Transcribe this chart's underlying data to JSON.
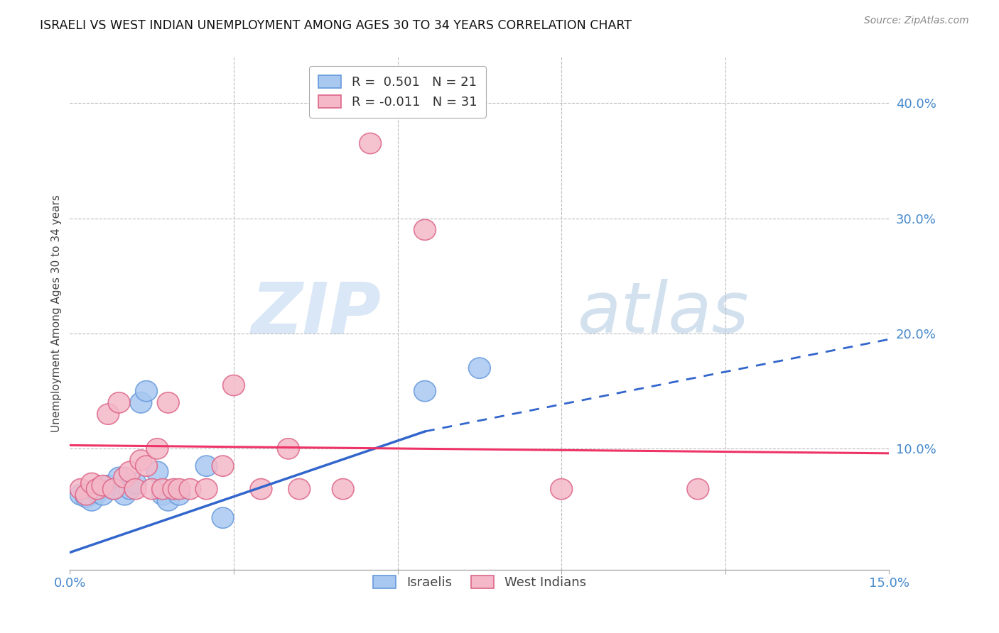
{
  "title": "ISRAELI VS WEST INDIAN UNEMPLOYMENT AMONG AGES 30 TO 34 YEARS CORRELATION CHART",
  "source": "Source: ZipAtlas.com",
  "ylabel": "Unemployment Among Ages 30 to 34 years",
  "xlim": [
    0.0,
    0.15
  ],
  "ylim": [
    -0.005,
    0.44
  ],
  "israelis_color": "#A8C8F0",
  "israelis_edge_color": "#6699DD",
  "west_indians_color": "#F4B8C8",
  "west_indians_edge_color": "#DD6688",
  "trend_israelis_color": "#3366CC",
  "trend_west_indians_color": "#EE3366",
  "watermark_zip": "ZIP",
  "watermark_atlas": "atlas",
  "israelis_x": [
    0.002,
    0.003,
    0.004,
    0.005,
    0.006,
    0.007,
    0.008,
    0.009,
    0.01,
    0.011,
    0.012,
    0.013,
    0.014,
    0.016,
    0.017,
    0.018,
    0.02,
    0.025,
    0.028,
    0.065,
    0.075
  ],
  "israelis_y": [
    0.06,
    0.058,
    0.055,
    0.062,
    0.06,
    0.068,
    0.065,
    0.075,
    0.06,
    0.065,
    0.07,
    0.14,
    0.15,
    0.08,
    0.06,
    0.055,
    0.06,
    0.085,
    0.04,
    0.15,
    0.17
  ],
  "west_indians_x": [
    0.002,
    0.003,
    0.004,
    0.005,
    0.006,
    0.007,
    0.008,
    0.009,
    0.01,
    0.011,
    0.012,
    0.013,
    0.014,
    0.015,
    0.016,
    0.017,
    0.018,
    0.019,
    0.02,
    0.022,
    0.025,
    0.028,
    0.03,
    0.035,
    0.04,
    0.042,
    0.05,
    0.055,
    0.065,
    0.09,
    0.115
  ],
  "west_indians_y": [
    0.065,
    0.06,
    0.07,
    0.065,
    0.068,
    0.13,
    0.065,
    0.14,
    0.075,
    0.08,
    0.065,
    0.09,
    0.085,
    0.065,
    0.1,
    0.065,
    0.14,
    0.065,
    0.065,
    0.065,
    0.065,
    0.085,
    0.155,
    0.065,
    0.1,
    0.065,
    0.065,
    0.365,
    0.29,
    0.065,
    0.065
  ],
  "trend_israeli_x0": 0.0,
  "trend_israeli_y0": 0.01,
  "trend_israeli_x1": 0.065,
  "trend_israeli_y1": 0.115,
  "trend_israeli_xdash": 0.065,
  "trend_israeli_ydash": 0.115,
  "trend_israeli_xend": 0.15,
  "trend_israeli_yend": 0.195,
  "trend_wi_x0": 0.0,
  "trend_wi_y0": 0.103,
  "trend_wi_x1": 0.15,
  "trend_wi_y1": 0.096,
  "background_color": "#FFFFFF",
  "grid_color": "#BBBBBB"
}
